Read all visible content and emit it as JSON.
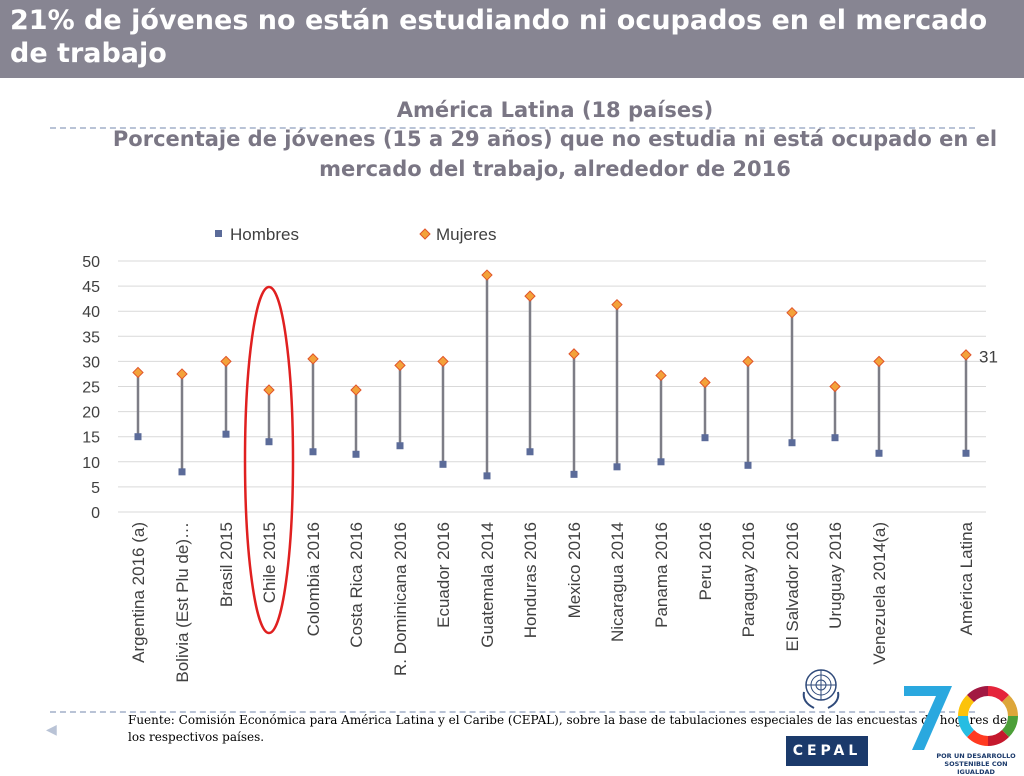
{
  "header": {
    "title": "21% de jóvenes no están estudiando ni ocupados en el mercado de trabajo"
  },
  "chart_title": {
    "line1": "América Latina (18 países)",
    "line2": "Porcentaje de jóvenes (15 a 29 años) que no estudia ni está ocupado en el mercado del trabajo, alrededor de 2016"
  },
  "source": "Fuente: Comisión Económica para América Latina y el Caribe (CEPAL), sobre la base de tabulaciones especiales de las encuestas de hogares de los respectivos países.",
  "logos": {
    "cepal": "CEPAL",
    "anniversary_tagline": "POR UN DESARROLLO SOSTENIBLE CON IGUALDAD"
  },
  "chart_data": {
    "type": "scatter",
    "categories": [
      "Argentina 2016 (a)",
      "Bolivia (Est Plu de)…",
      "Brasil 2015",
      "Chile 2015",
      "Colombia 2016",
      "Costa Rica 2016",
      "R. Dominicana 2016",
      "Ecuador 2016",
      "Guatemala 2014",
      "Honduras 2016",
      "Mexico 2016",
      "Nicaragua 2014",
      "Panama 2016",
      "Peru 2016",
      "Paraguay 2016",
      "El Salvador 2016",
      "Uruguay 2016",
      "Venezuela 2014(a)",
      "América Latina"
    ],
    "series": [
      {
        "name": "Hombres",
        "values": [
          15,
          8,
          15.5,
          14,
          12,
          11.5,
          13.2,
          9.5,
          7.2,
          12,
          7.5,
          9,
          10,
          14.8,
          9.3,
          13.8,
          14.8,
          11.7,
          11.7
        ],
        "color": "#5b6b99",
        "marker": "square"
      },
      {
        "name": "Mujeres",
        "values": [
          27.8,
          27.5,
          30,
          24.3,
          30.5,
          24.3,
          29.2,
          30,
          47.2,
          43,
          31.5,
          41.3,
          27.2,
          25.8,
          30,
          39.7,
          25,
          30,
          31.3
        ],
        "color": "#f3a23a",
        "marker": "diamond"
      }
    ],
    "ylim": [
      0,
      50
    ],
    "yticks": [
      0,
      5,
      10,
      15,
      20,
      25,
      30,
      35,
      40,
      45,
      50
    ],
    "grid": true,
    "legend_position": "top-left",
    "annotations": [
      {
        "text": "31",
        "category": "América Latina",
        "value": 31
      },
      {
        "type": "ellipse-highlight",
        "category": "Chile 2015",
        "color": "#e02020"
      }
    ],
    "connector_color": "#7d7d86"
  }
}
